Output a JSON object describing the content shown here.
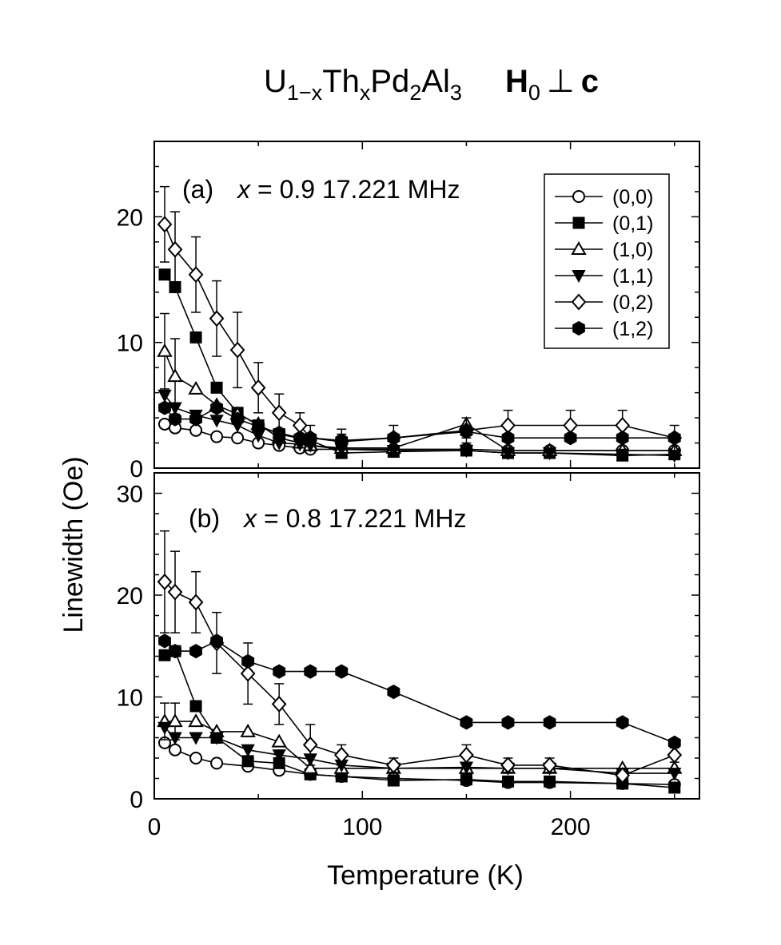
{
  "figure": {
    "title_main": "U",
    "title_sub1": "1−x",
    "title_th": "Th",
    "title_sub2": "x",
    "title_pd": "Pd",
    "title_sub3": "2",
    "title_al": "Al",
    "title_sub4": "3",
    "title_h": "H",
    "title_h_sub": "0",
    "title_perp": "⊥",
    "title_c": "c",
    "ylabel": "Linewidth (Oe)",
    "xlabel": "Temperature  (K)"
  },
  "chart_data": [
    {
      "type": "line",
      "panel": "a",
      "annotation_label": "(a)",
      "annotation_var": "x",
      "annotation_rest": " = 0.9  17.221 MHz",
      "xlim": [
        0,
        262
      ],
      "ylim": [
        0,
        26
      ],
      "xticks": [
        0,
        100,
        200
      ],
      "yticks": [
        0,
        10,
        20
      ],
      "series": [
        {
          "name": "(0,0)",
          "marker": "circle",
          "filled": false,
          "x": [
            5,
            10,
            20,
            30,
            40,
            50,
            60,
            70,
            75,
            90,
            115,
            150,
            170,
            190,
            225,
            250
          ],
          "y": [
            3.5,
            3.2,
            3.0,
            2.5,
            2.4,
            2.0,
            1.8,
            1.6,
            1.5,
            1.5,
            1.5,
            1.5,
            1.4,
            1.4,
            1.4,
            1.4
          ],
          "err": [
            0,
            0,
            0,
            0,
            0,
            0,
            0,
            0,
            0,
            0,
            0,
            0,
            0,
            0,
            0,
            0
          ]
        },
        {
          "name": "(0,1)",
          "marker": "square",
          "filled": true,
          "x": [
            5,
            10,
            20,
            30,
            40,
            50,
            60,
            75,
            90,
            115,
            150,
            170,
            190,
            225,
            250
          ],
          "y": [
            15.4,
            14.4,
            10.4,
            6.4,
            4.4,
            3.4,
            2.7,
            2.2,
            1.2,
            1.3,
            1.4,
            1.2,
            1.2,
            1.0,
            1.1
          ],
          "err": [
            0,
            0,
            0,
            0,
            0,
            0,
            0,
            0,
            0,
            0,
            0,
            0,
            0,
            0,
            0
          ]
        },
        {
          "name": "(1,0)",
          "marker": "triangle-up",
          "filled": false,
          "x": [
            5,
            10,
            20,
            30,
            40,
            50,
            60,
            70,
            75,
            90,
            115,
            150,
            170,
            190,
            225,
            250
          ],
          "y": [
            9.3,
            7.3,
            6.3,
            5.0,
            4.3,
            3.5,
            2.4,
            2.0,
            1.8,
            1.6,
            1.6,
            3.5,
            1.4,
            1.4,
            1.4,
            1.4
          ],
          "err": [
            3.0,
            3.0,
            0,
            0,
            0,
            0,
            0,
            0,
            0,
            0,
            0,
            0,
            0,
            0,
            0,
            0
          ]
        },
        {
          "name": "(1,1)",
          "marker": "triangle-down",
          "filled": true,
          "x": [
            5,
            10,
            20,
            30,
            40,
            50,
            60,
            70,
            75,
            90,
            115,
            150,
            170,
            190,
            225,
            250
          ],
          "y": [
            5.8,
            4.8,
            4.2,
            3.8,
            3.4,
            2.6,
            2.0,
            1.9,
            1.8,
            1.5,
            1.4,
            1.4,
            1.2,
            1.2,
            1.1,
            1.0
          ],
          "err": [
            0,
            0,
            0,
            0,
            0,
            0,
            0,
            0,
            0,
            0,
            0,
            0,
            0,
            0,
            0,
            0
          ]
        },
        {
          "name": "(0,2)",
          "marker": "diamond",
          "filled": false,
          "x": [
            5,
            10,
            20,
            30,
            40,
            50,
            60,
            70,
            75,
            90,
            115,
            150,
            170,
            200,
            225,
            250
          ],
          "y": [
            19.4,
            17.4,
            15.4,
            11.9,
            9.4,
            6.4,
            4.4,
            3.4,
            2.4,
            2.1,
            2.4,
            3.0,
            3.4,
            3.4,
            3.4,
            2.4
          ],
          "err": [
            3.0,
            3.0,
            3.0,
            3.0,
            3.0,
            2.0,
            1.5,
            1.0,
            1.0,
            1.0,
            1.0,
            1.0,
            1.2,
            1.2,
            1.2,
            1.0
          ]
        },
        {
          "name": "(1,2)",
          "marker": "hexagon",
          "filled": true,
          "x": [
            5,
            10,
            20,
            30,
            40,
            50,
            60,
            70,
            75,
            90,
            115,
            150,
            170,
            200,
            225,
            250
          ],
          "y": [
            4.8,
            3.9,
            3.9,
            4.8,
            3.9,
            3.3,
            2.8,
            2.4,
            2.4,
            2.2,
            2.4,
            2.9,
            2.4,
            2.4,
            2.4,
            2.4
          ],
          "err": [
            0,
            0,
            0,
            0,
            0,
            0,
            0,
            0,
            0,
            0.5,
            0,
            0.5,
            0,
            0,
            0,
            0
          ]
        }
      ]
    },
    {
      "type": "line",
      "panel": "b",
      "annotation_label": "(b)",
      "annotation_var": "x",
      "annotation_rest": " = 0.8  17.221 MHz",
      "xlim": [
        0,
        262
      ],
      "ylim": [
        0,
        32
      ],
      "xticks": [
        0,
        100,
        200
      ],
      "yticks": [
        0,
        10,
        20,
        30
      ],
      "series": [
        {
          "name": "(0,0)",
          "marker": "circle",
          "filled": false,
          "x": [
            5,
            10,
            20,
            30,
            45,
            60,
            75,
            90,
            115,
            150,
            170,
            190,
            225,
            250
          ],
          "y": [
            5.5,
            4.8,
            4.0,
            3.5,
            3.2,
            2.8,
            2.4,
            2.2,
            2.0,
            1.8,
            1.6,
            1.6,
            1.5,
            1.4
          ],
          "err": [
            0,
            0,
            0,
            0,
            0,
            0,
            0,
            0,
            0,
            0,
            0,
            0,
            0,
            0
          ]
        },
        {
          "name": "(0,1)",
          "marker": "square",
          "filled": true,
          "x": [
            5,
            10,
            20,
            30,
            45,
            60,
            75,
            90,
            115,
            150,
            170,
            190,
            225,
            250
          ],
          "y": [
            14.1,
            14.5,
            9.1,
            6.0,
            3.7,
            3.5,
            2.4,
            2.2,
            1.8,
            1.9,
            1.7,
            1.7,
            1.5,
            1.1
          ],
          "err": [
            0,
            0,
            0,
            0,
            0,
            0,
            0,
            0,
            0,
            0,
            0,
            0,
            0,
            0
          ]
        },
        {
          "name": "(1,0)",
          "marker": "triangle-up",
          "filled": false,
          "x": [
            5,
            10,
            20,
            30,
            45,
            60,
            75,
            90,
            115,
            150,
            170,
            190,
            225,
            250
          ],
          "y": [
            7.6,
            7.6,
            7.6,
            6.6,
            6.6,
            5.6,
            3.0,
            3.0,
            3.0,
            3.0,
            3.0,
            3.0,
            3.0,
            3.0
          ],
          "err": [
            1.8,
            1.8,
            0,
            0,
            0,
            0,
            0,
            0,
            0,
            0,
            0,
            0,
            0,
            0
          ]
        },
        {
          "name": "(1,1)",
          "marker": "triangle-down",
          "filled": true,
          "x": [
            5,
            10,
            20,
            30,
            45,
            60,
            75,
            90,
            115,
            150,
            170,
            190,
            225,
            250
          ],
          "y": [
            7.0,
            6.0,
            6.0,
            6.0,
            4.8,
            4.3,
            3.9,
            3.3,
            3.0,
            3.1,
            3.0,
            3.0,
            2.5,
            2.5
          ],
          "err": [
            0,
            0,
            0,
            0,
            0,
            0,
            0,
            0,
            0,
            0,
            0,
            0,
            0,
            0
          ]
        },
        {
          "name": "(0,2)",
          "marker": "diamond",
          "filled": false,
          "x": [
            5,
            10,
            20,
            30,
            45,
            60,
            75,
            90,
            115,
            150,
            170,
            190,
            225,
            250
          ],
          "y": [
            21.3,
            20.3,
            19.3,
            15.3,
            12.3,
            9.3,
            5.3,
            4.3,
            3.3,
            4.3,
            3.3,
            3.3,
            2.3,
            4.3
          ],
          "err": [
            5.0,
            4.0,
            3.0,
            3.0,
            3.0,
            2.0,
            2.0,
            1.0,
            0.7,
            1.0,
            0.7,
            0.7,
            0.7,
            0.7
          ]
        },
        {
          "name": "(1,2)",
          "marker": "hexagon",
          "filled": true,
          "x": [
            5,
            10,
            20,
            30,
            45,
            60,
            75,
            90,
            115,
            150,
            170,
            190,
            225,
            250
          ],
          "y": [
            15.5,
            14.5,
            14.5,
            15.5,
            13.5,
            12.5,
            12.5,
            12.5,
            10.5,
            7.5,
            7.5,
            7.5,
            7.5,
            5.5
          ],
          "err": [
            0,
            0,
            0,
            0,
            0,
            0,
            0,
            0,
            0,
            0,
            0,
            0,
            0,
            0
          ]
        }
      ]
    }
  ]
}
